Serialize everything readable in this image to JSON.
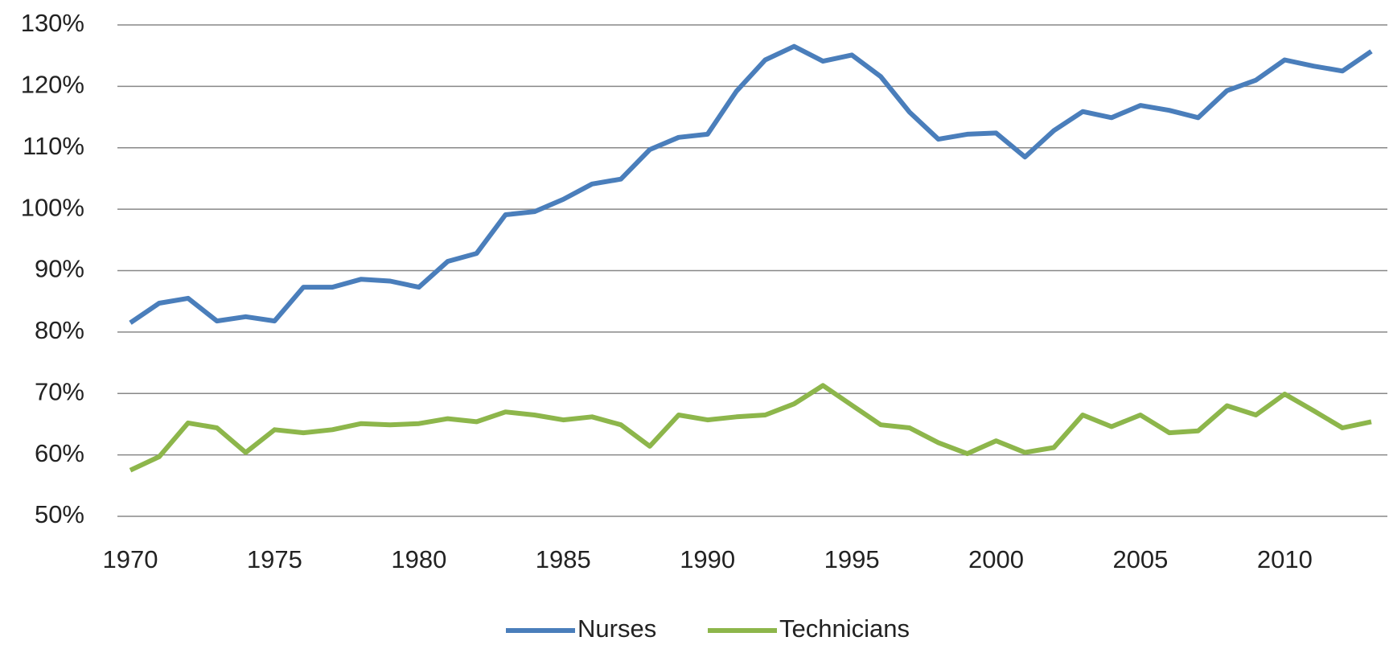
{
  "chart_data": {
    "type": "line",
    "x": [
      1970,
      1971,
      1972,
      1973,
      1974,
      1975,
      1976,
      1977,
      1978,
      1979,
      1980,
      1981,
      1982,
      1983,
      1984,
      1985,
      1986,
      1987,
      1988,
      1989,
      1990,
      1991,
      1992,
      1993,
      1994,
      1995,
      1996,
      1997,
      1998,
      1999,
      2000,
      2001,
      2002,
      2003,
      2004,
      2005,
      2006,
      2007,
      2008,
      2009,
      2010,
      2011,
      2012,
      2013
    ],
    "series": [
      {
        "name": "Nurses",
        "color": "#4a7ebb",
        "values": [
          81.5,
          84.7,
          85.5,
          81.8,
          82.5,
          81.8,
          87.3,
          87.3,
          88.6,
          88.3,
          87.3,
          91.5,
          92.8,
          99.1,
          99.6,
          101.6,
          104.1,
          104.9,
          109.7,
          111.7,
          112.2,
          119.2,
          124.3,
          126.5,
          124.1,
          125.1,
          121.6,
          115.8,
          111.4,
          112.2,
          112.4,
          108.5,
          112.8,
          115.9,
          114.9,
          116.9,
          116.1,
          114.9,
          119.3,
          121.0,
          124.3,
          123.3,
          122.5,
          125.7
        ]
      },
      {
        "name": "Technicians",
        "color": "#8db64b",
        "values": [
          57.5,
          59.7,
          65.2,
          64.4,
          60.4,
          64.1,
          63.6,
          64.1,
          65.1,
          64.9,
          65.1,
          65.9,
          65.4,
          67.0,
          66.5,
          65.7,
          66.2,
          64.9,
          61.4,
          66.5,
          65.7,
          66.2,
          66.5,
          68.3,
          71.3,
          68.1,
          64.9,
          64.4,
          62.0,
          60.2,
          62.3,
          60.4,
          61.2,
          66.5,
          64.6,
          66.5,
          63.6,
          63.9,
          68.0,
          66.5,
          69.9,
          67.2,
          64.4,
          65.4
        ]
      }
    ],
    "xlim": [
      1970,
      2013
    ],
    "xticks": [
      1970,
      1975,
      1980,
      1985,
      1990,
      1995,
      2000,
      2005,
      2010
    ],
    "ylim": [
      50,
      130
    ],
    "yticks": [
      {
        "value": 50,
        "label": "50%"
      },
      {
        "value": 60,
        "label": "60%"
      },
      {
        "value": 70,
        "label": "70%"
      },
      {
        "value": 80,
        "label": "80%"
      },
      {
        "value": 90,
        "label": "90%"
      },
      {
        "value": 100,
        "label": "100%"
      },
      {
        "value": 110,
        "label": "110%"
      },
      {
        "value": 120,
        "label": "120%"
      },
      {
        "value": 130,
        "label": "130%"
      }
    ],
    "grid": true,
    "legend": "bottom"
  }
}
